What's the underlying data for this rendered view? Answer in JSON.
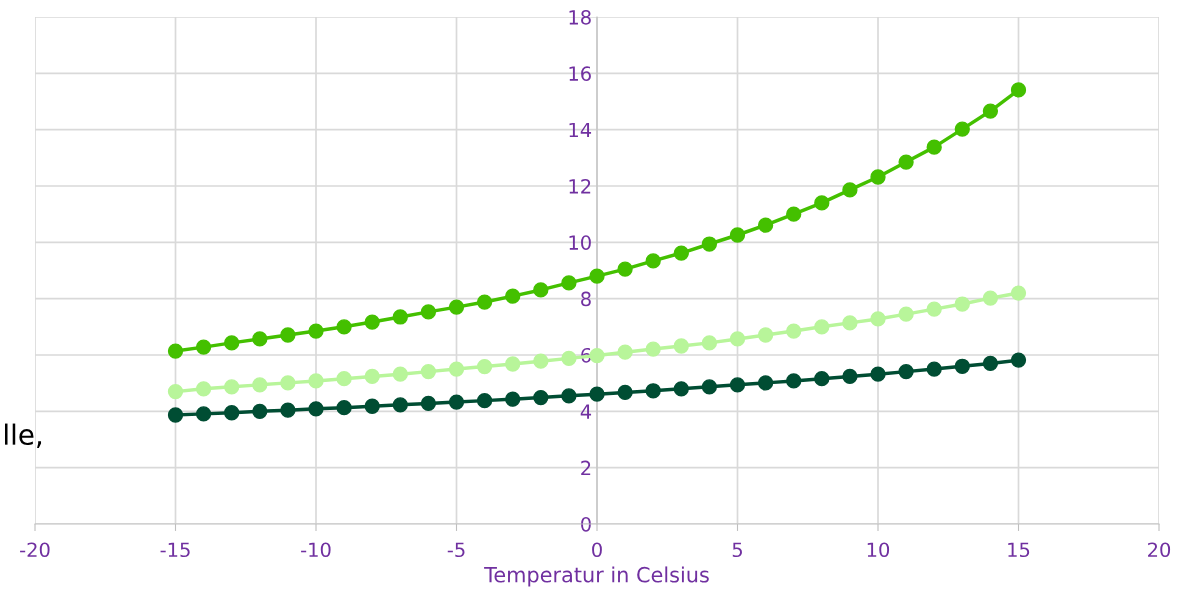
{
  "chart_data": {
    "type": "line",
    "xlabel": "Temperatur in Celsius",
    "annotations": [
      "lle,"
    ],
    "x": [
      -15,
      -14,
      -13,
      -12,
      -11,
      -10,
      -9,
      -8,
      -7,
      -6,
      -5,
      -4,
      -3,
      -2,
      -1,
      0,
      1,
      2,
      3,
      4,
      5,
      6,
      7,
      8,
      9,
      10,
      11,
      12,
      13,
      14,
      15
    ],
    "series": [
      {
        "color": "#44c000",
        "values": [
          6.14,
          6.28,
          6.43,
          6.57,
          6.71,
          6.85,
          7.0,
          7.17,
          7.35,
          7.53,
          7.7,
          7.88,
          8.09,
          8.31,
          8.56,
          8.8,
          9.05,
          9.34,
          9.62,
          9.94,
          10.26,
          10.61,
          11.0,
          11.4,
          11.86,
          12.32,
          12.85,
          13.38,
          14.02,
          14.66,
          15.41
        ]
      },
      {
        "color": "#b8f59a",
        "values": [
          4.7,
          4.8,
          4.87,
          4.94,
          5.01,
          5.08,
          5.16,
          5.24,
          5.32,
          5.41,
          5.5,
          5.59,
          5.68,
          5.78,
          5.88,
          5.98,
          6.1,
          6.21,
          6.32,
          6.43,
          6.57,
          6.71,
          6.85,
          7.0,
          7.14,
          7.28,
          7.45,
          7.63,
          7.81,
          8.02,
          8.2
        ]
      },
      {
        "color": "#004d33",
        "values": [
          3.87,
          3.91,
          3.95,
          4.0,
          4.04,
          4.09,
          4.13,
          4.18,
          4.23,
          4.28,
          4.33,
          4.38,
          4.43,
          4.49,
          4.55,
          4.61,
          4.67,
          4.73,
          4.8,
          4.87,
          4.94,
          5.01,
          5.08,
          5.16,
          5.24,
          5.32,
          5.41,
          5.5,
          5.6,
          5.7,
          5.82
        ]
      }
    ],
    "xlim": [
      -20,
      20
    ],
    "xticks": [
      -20,
      -15,
      -10,
      -5,
      0,
      5,
      10,
      15,
      20
    ],
    "ylim": [
      0,
      18
    ],
    "yticks": [
      0,
      2,
      4,
      6,
      8,
      10,
      12,
      14,
      16,
      18
    ],
    "grid": true,
    "legend": false,
    "marker": "circle",
    "line_style": "solid"
  }
}
